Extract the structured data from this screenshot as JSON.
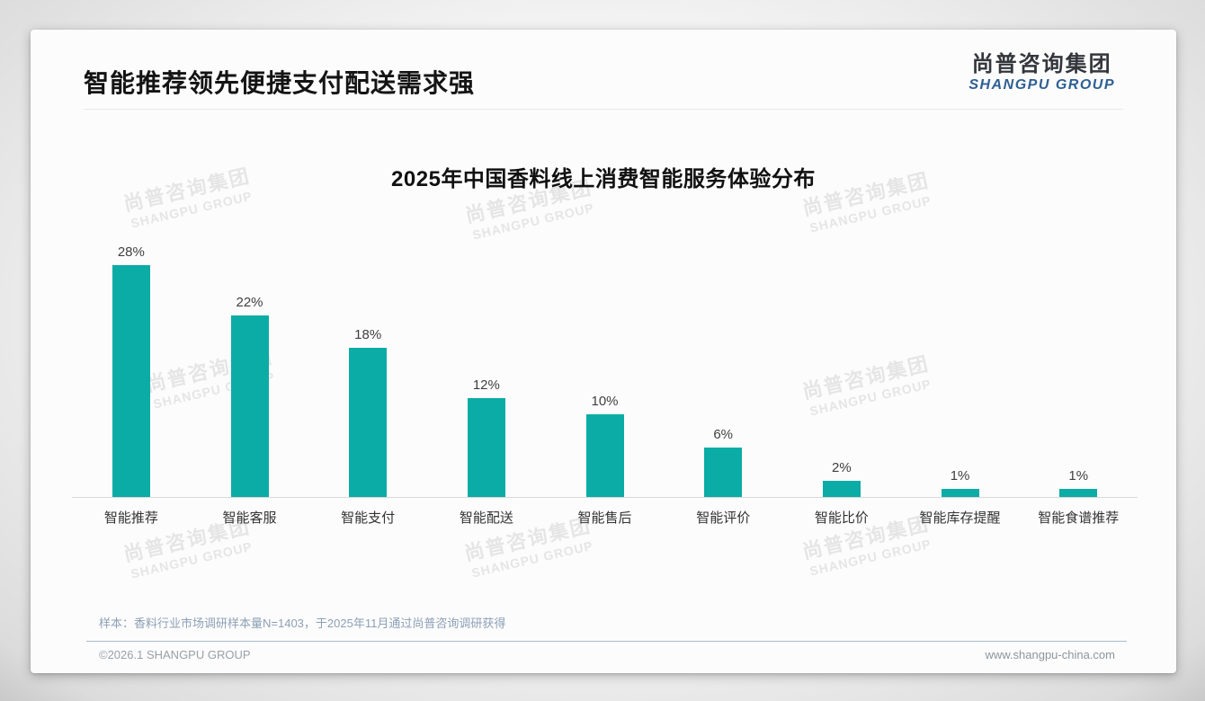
{
  "page": {
    "header": {
      "title": "智能推荐领先便捷支付配送需求强",
      "logo": {
        "cn": "尚普咨询集团",
        "en": "SHANGPU GROUP"
      }
    },
    "watermark": {
      "line1": "尚普咨询集团",
      "line2": "SHANGPU GROUP"
    },
    "note": "样本：香料行业市场调研样本量N=1403，于2025年11月通过尚普咨询调研获得",
    "footer": {
      "copyright": "©2026.1 SHANGPU GROUP",
      "website": "www.shangpu-china.com"
    },
    "colors": {
      "accent_teal": "#0baca5",
      "logo_blue": "#2e5f94",
      "value_label": "#404040",
      "note_blue_gray": "#8da0b6"
    }
  },
  "chart_data": {
    "type": "bar",
    "title": "2025年中国香料线上消费智能服务体验分布",
    "categories": [
      "智能推荐",
      "智能客服",
      "智能支付",
      "智能配送",
      "智能售后",
      "智能评价",
      "智能比价",
      "智能库存提醒",
      "智能食谱推荐"
    ],
    "values": [
      28,
      22,
      18,
      12,
      10,
      6,
      2,
      1,
      1
    ],
    "unit": "%",
    "bar_color": "#0baca5",
    "xlabel": "",
    "ylabel": "",
    "ylim": [
      0,
      30
    ],
    "grid": false,
    "legend": false,
    "value_labels_shown": true
  }
}
